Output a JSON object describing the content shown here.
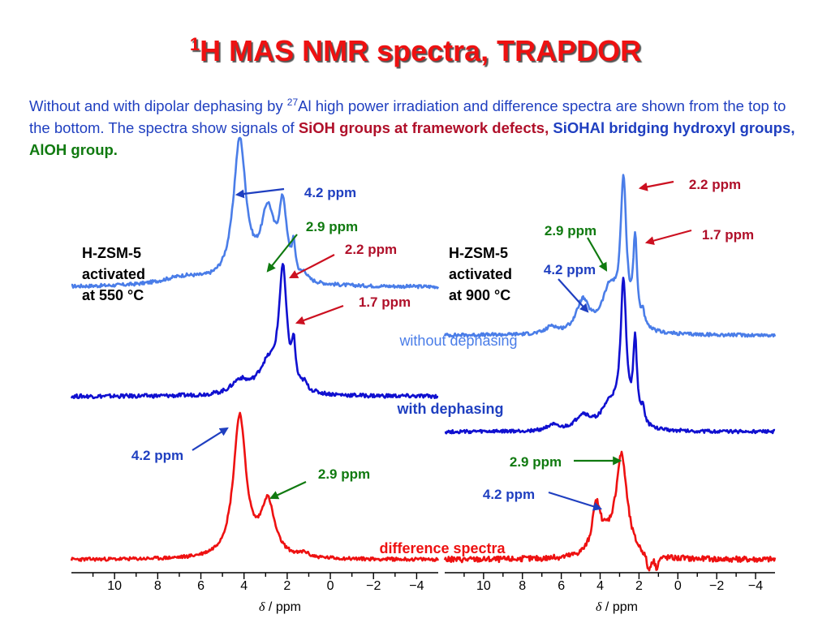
{
  "title": {
    "sup": "1",
    "main": "H MAS NMR spectra, TRAPDOR"
  },
  "description": {
    "part1": "Without  and with dipolar dephasing by ",
    "sup": "27",
    "part2": "Al high power irradiation and difference spectra are shown from the top to the bottom. The spectra show signals of ",
    "sioh": "SiOH groups at framework defects",
    "comma1": ", ",
    "siohal": "SiOHAl bridging hydroxyl groups",
    "comma2": ", ",
    "aloh": "AlOH group."
  },
  "colors": {
    "title": "#ee1111",
    "text": "#1f3fc0",
    "red_label": "#b0102a",
    "green_label": "#107a10",
    "without": "#4a7de8",
    "with": "#1010d0",
    "difference": "#ee1111"
  },
  "chart_data": [
    {
      "type": "line",
      "sample": "H-ZSM-5 activated at 550 °C",
      "sample_lines": [
        "H-ZSM-5",
        "activated",
        "at 550 °C"
      ],
      "xlabel": "δ / ppm",
      "xlabel_sym": "δ",
      "xlabel_unit": " / ppm",
      "xlim": [
        12,
        -5
      ],
      "xticks": [
        "10",
        "8",
        "6",
        "4",
        "2",
        "0",
        "−2",
        "−4"
      ],
      "xtick_values": [
        10,
        8,
        6,
        4,
        2,
        0,
        -2,
        -4
      ],
      "series": [
        {
          "name": "without  dephasing",
          "peaks": [
            [
              4.2,
              1.0,
              0.35
            ],
            [
              2.9,
              0.48,
              0.38
            ],
            [
              2.2,
              0.5,
              0.22
            ],
            [
              1.7,
              0.2,
              0.1
            ],
            [
              1.2,
              0.05,
              0.15
            ],
            [
              6.8,
              0.06,
              1.3
            ]
          ],
          "offset": 1.92,
          "noise": 0.012
        },
        {
          "name": "with dephasing",
          "peaks": [
            [
              4.2,
              0.09,
              0.45
            ],
            [
              2.9,
              0.2,
              0.55
            ],
            [
              2.2,
              0.84,
              0.22
            ],
            [
              1.7,
              0.27,
              0.1
            ],
            [
              1.2,
              0.05,
              0.15
            ]
          ],
          "offset": 1.15,
          "noise": 0.014
        },
        {
          "name": "difference spectra",
          "peaks": [
            [
              4.2,
              1.0,
              0.35
            ],
            [
              2.9,
              0.38,
              0.38
            ],
            [
              1.2,
              0.03,
              0.2
            ]
          ],
          "offset": 0.0,
          "noise": 0.012
        }
      ],
      "annotations": [
        {
          "text": "4.2 ppm",
          "color": "blue"
        },
        {
          "text": "2.9 ppm",
          "color": "green"
        },
        {
          "text": "2.2 ppm",
          "color": "red"
        },
        {
          "text": "1.7 ppm",
          "color": "red"
        },
        {
          "text": "4.2 ppm",
          "color": "blue"
        },
        {
          "text": "2.9 ppm",
          "color": "green"
        }
      ]
    },
    {
      "type": "line",
      "sample": "H-ZSM-5 activated at 900 °C",
      "sample_lines": [
        "H-ZSM-5",
        "activated",
        "at 900 °C"
      ],
      "xlabel": "δ / ppm",
      "xlabel_sym": "δ",
      "xlabel_unit": " / ppm",
      "xlim": [
        12,
        -5
      ],
      "xticks": [
        "10",
        "8",
        "6",
        "4",
        "2",
        "0",
        "−2",
        "−4"
      ],
      "xtick_values": [
        10,
        8,
        6,
        4,
        2,
        0,
        -2,
        -4
      ],
      "series": [
        {
          "name": "without  dephasing",
          "peaks": [
            [
              4.9,
              0.22,
              0.4
            ],
            [
              3.5,
              0.3,
              0.5
            ],
            [
              2.8,
              1.0,
              0.18
            ],
            [
              2.2,
              0.6,
              0.12
            ],
            [
              1.8,
              0.1,
              0.1
            ],
            [
              6.5,
              0.05,
              0.3
            ]
          ],
          "offset": 1.58,
          "noise": 0.012
        },
        {
          "name": "with dephasing",
          "peaks": [
            [
              4.9,
              0.1,
              0.45
            ],
            [
              3.5,
              0.17,
              0.55
            ],
            [
              2.8,
              1.0,
              0.18
            ],
            [
              2.2,
              0.58,
              0.12
            ],
            [
              1.8,
              0.12,
              0.1
            ],
            [
              6.5,
              0.04,
              0.3
            ]
          ],
          "offset": 0.9,
          "noise": 0.012
        },
        {
          "name": "difference spectra",
          "peaks": [
            [
              4.2,
              0.31,
              0.25
            ],
            [
              2.9,
              0.7,
              0.35
            ],
            [
              3.7,
              0.1,
              0.6
            ],
            [
              1.5,
              -0.12,
              0.12
            ],
            [
              1.1,
              -0.08,
              0.1
            ]
          ],
          "offset": 0.0,
          "noise": 0.02
        }
      ],
      "annotations": [
        {
          "text": "2.2 ppm",
          "color": "red"
        },
        {
          "text": "1.7 ppm",
          "color": "red"
        },
        {
          "text": "2.9 ppm",
          "color": "green"
        },
        {
          "text": "4.2 ppm",
          "color": "blue"
        },
        {
          "text": "2.9 ppm",
          "color": "green"
        },
        {
          "text": "4.2 ppm",
          "color": "blue"
        }
      ]
    }
  ],
  "series_labels": {
    "without": "without  dephasing",
    "with": "with dephasing",
    "difference": "difference spectra"
  }
}
